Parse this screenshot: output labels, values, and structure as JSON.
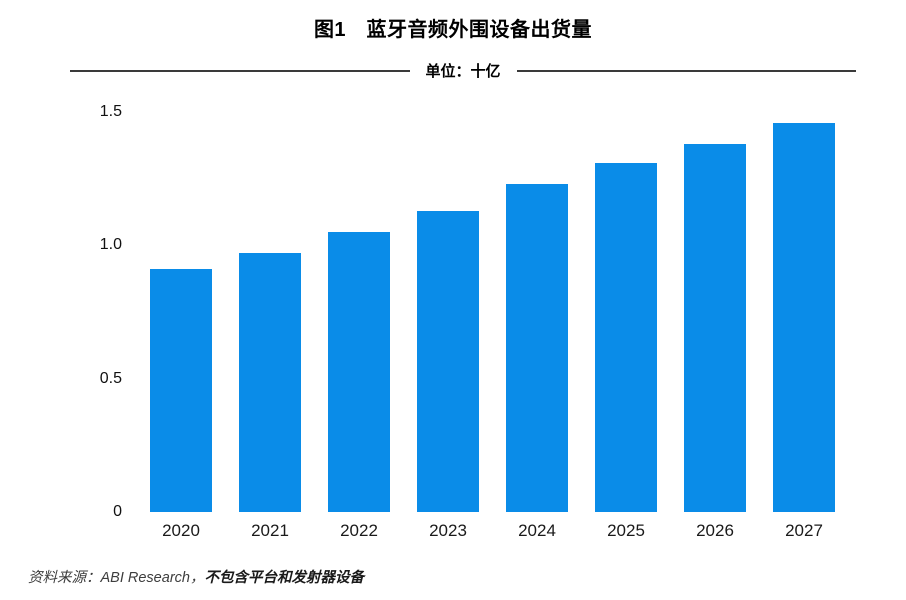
{
  "page": {
    "title": "图1　蓝牙音频外围设备出货量",
    "unit_label": "单位：十亿"
  },
  "chart_data": {
    "type": "bar",
    "title": "图1　蓝牙音频外围设备出货量",
    "subtitle": "单位：十亿",
    "categories": [
      "2020",
      "2021",
      "2022",
      "2023",
      "2024",
      "2025",
      "2026",
      "2027"
    ],
    "values": [
      0.91,
      0.97,
      1.05,
      1.13,
      1.23,
      1.31,
      1.38,
      1.46
    ],
    "xlabel": "",
    "ylabel": "",
    "ylim": [
      0,
      1.5
    ],
    "yticks": [
      "0",
      "0.5",
      "1.0",
      "1.5"
    ],
    "bar_color": "#0A8CE8",
    "grid": false,
    "legend": "none"
  },
  "footer": {
    "prefix": "资料来源：ABI Research，",
    "bold_note": "不包含平台和发射器设备"
  }
}
